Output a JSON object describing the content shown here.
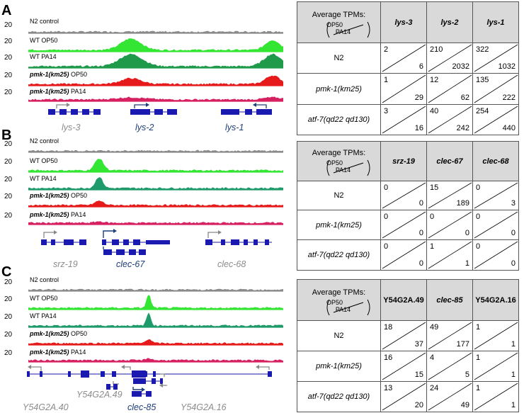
{
  "panels": [
    {
      "letter": "A",
      "scale": "20",
      "tracks": [
        {
          "label_plain": "N2 control",
          "label_italic": "",
          "suffix": "",
          "color": "#8a8a8a"
        },
        {
          "label_plain": "WT OP50",
          "label_italic": "",
          "suffix": "",
          "color": "#33e633"
        },
        {
          "label_plain": "WT PA14",
          "label_italic": "",
          "suffix": "",
          "color": "#1f9a4a"
        },
        {
          "label_plain": "",
          "label_italic": "pmk-1(km25)",
          "suffix": " OP50",
          "color": "#e61a1a"
        },
        {
          "label_plain": "",
          "label_italic": "pmk-1(km25)",
          "suffix": " PA14",
          "color": "#d62060"
        }
      ],
      "genes": [
        {
          "name": "lys-3",
          "style": "grey"
        },
        {
          "name": "lys-2",
          "style": "blue"
        },
        {
          "name": "lys-1",
          "style": "blue"
        }
      ],
      "table": {
        "header": "Average TPMs:",
        "ratio_top": "OP50",
        "ratio_bottom": "PA14",
        "columns": [
          "lys-3",
          "lys-2",
          "lys-1"
        ],
        "columns_plain": [
          false,
          false,
          false
        ],
        "rows": [
          {
            "label": "N2",
            "italic": false,
            "cells": [
              [
                "2",
                "6"
              ],
              [
                "210",
                "2032"
              ],
              [
                "322",
                "1032"
              ]
            ]
          },
          {
            "label": "pmk-1(km25)",
            "italic": true,
            "cells": [
              [
                "1",
                "29"
              ],
              [
                "12",
                "62"
              ],
              [
                "135",
                "222"
              ]
            ]
          },
          {
            "label": "atf-7(qd22 qd130)",
            "italic": true,
            "cells": [
              [
                "3",
                "16"
              ],
              [
                "40",
                "242"
              ],
              [
                "254",
                "440"
              ]
            ]
          }
        ]
      }
    },
    {
      "letter": "B",
      "scale": "20",
      "tracks": [
        {
          "label_plain": "N2 control",
          "label_italic": "",
          "suffix": "",
          "color": "#8a8a8a"
        },
        {
          "label_plain": "WT OP50",
          "label_italic": "",
          "suffix": "",
          "color": "#33e633"
        },
        {
          "label_plain": "WT PA14",
          "label_italic": "",
          "suffix": "",
          "color": "#1f9a6a"
        },
        {
          "label_plain": "",
          "label_italic": "pmk-1(km25)",
          "suffix": " OP50",
          "color": "#e61a1a"
        },
        {
          "label_plain": "",
          "label_italic": "pmk-1(km25)",
          "suffix": " PA14",
          "color": "#d62060"
        }
      ],
      "genes": [
        {
          "name": "srz-19",
          "style": "grey"
        },
        {
          "name": "clec-67",
          "style": "blue"
        },
        {
          "name": "clec-68",
          "style": "grey"
        }
      ],
      "table": {
        "header": "Average TPMs:",
        "ratio_top": "OP50",
        "ratio_bottom": "PA14",
        "columns": [
          "srz-19",
          "clec-67",
          "clec-68"
        ],
        "columns_plain": [
          false,
          false,
          false
        ],
        "rows": [
          {
            "label": "N2",
            "italic": false,
            "cells": [
              [
                "0",
                "0"
              ],
              [
                "15",
                "189"
              ],
              [
                "0",
                "3"
              ]
            ]
          },
          {
            "label": "pmk-1(km25)",
            "italic": true,
            "cells": [
              [
                "0",
                "0"
              ],
              [
                "0",
                "0"
              ],
              [
                "0",
                "0"
              ]
            ]
          },
          {
            "label": "atf-7(qd22 qd130)",
            "italic": true,
            "cells": [
              [
                "0",
                "0"
              ],
              [
                "1",
                "1"
              ],
              [
                "0",
                "0"
              ]
            ]
          }
        ]
      }
    },
    {
      "letter": "C",
      "scale": "20",
      "tracks": [
        {
          "label_plain": "N2 control",
          "label_italic": "",
          "suffix": "",
          "color": "#8a8a8a"
        },
        {
          "label_plain": "WT OP50",
          "label_italic": "",
          "suffix": "",
          "color": "#33e633"
        },
        {
          "label_plain": "WT PA14",
          "label_italic": "",
          "suffix": "",
          "color": "#1f9a6a"
        },
        {
          "label_plain": "",
          "label_italic": "pmk-1(km25)",
          "suffix": " OP50",
          "color": "#e61a1a"
        },
        {
          "label_plain": "",
          "label_italic": "pmk-1(km25)",
          "suffix": " PA14",
          "color": "#d62060"
        }
      ],
      "genes": [
        {
          "name": "Y54G2A.40",
          "style": "grey"
        },
        {
          "name": "Y54G2A.49",
          "style": "grey"
        },
        {
          "name": "clec-85",
          "style": "blue"
        },
        {
          "name": "Y54G2A.16",
          "style": "grey"
        }
      ],
      "table": {
        "header": "Average TPMs:",
        "ratio_top": "OP50",
        "ratio_bottom": "PA14",
        "columns": [
          "Y54G2A.49",
          "clec-85",
          "Y54G2A.16"
        ],
        "columns_plain": [
          true,
          false,
          true
        ],
        "rows": [
          {
            "label": "N2",
            "italic": false,
            "cells": [
              [
                "18",
                "37"
              ],
              [
                "49",
                "177"
              ],
              [
                "1",
                "1"
              ]
            ]
          },
          {
            "label": "pmk-1(km25)",
            "italic": true,
            "cells": [
              [
                "16",
                "15"
              ],
              [
                "4",
                "5"
              ],
              [
                "1",
                "1"
              ]
            ]
          },
          {
            "label": "atf-7(qd22 qd130)",
            "italic": true,
            "cells": [
              [
                "13",
                "20"
              ],
              [
                "24",
                "49"
              ],
              [
                "1",
                "1"
              ]
            ]
          }
        ]
      }
    }
  ]
}
